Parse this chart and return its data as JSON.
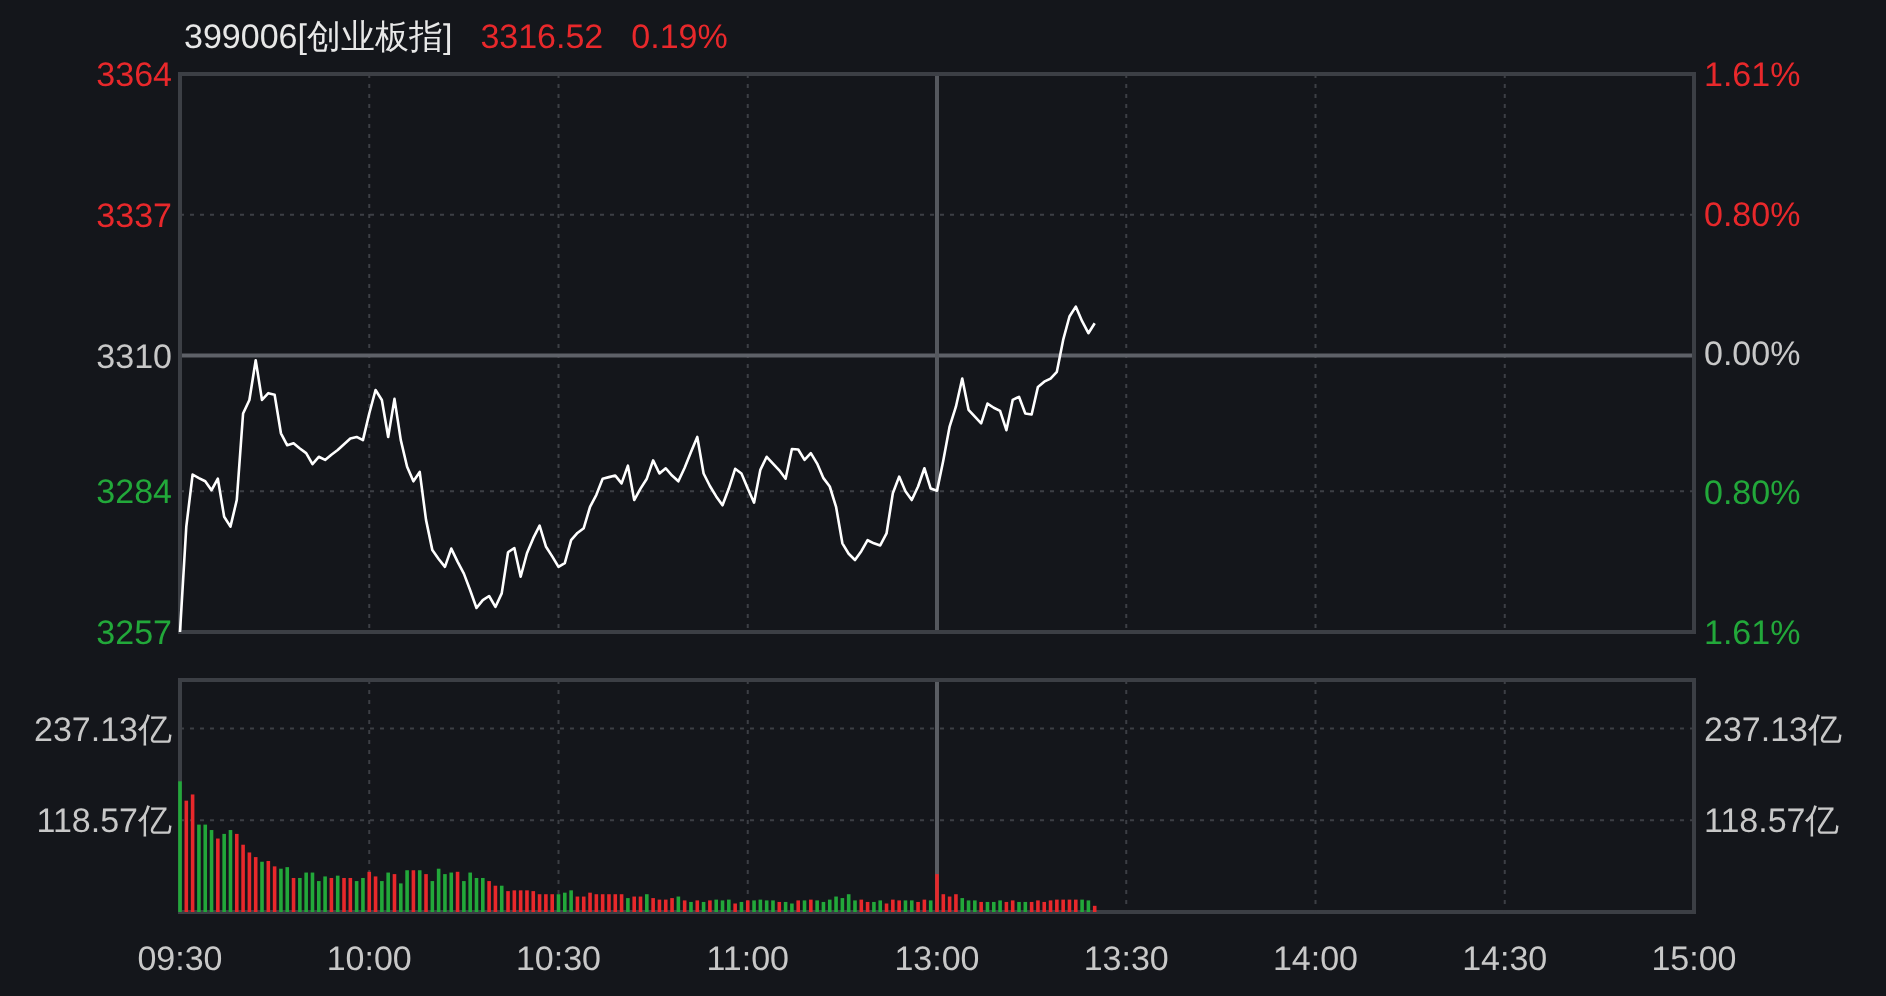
{
  "chart_data": [
    {
      "type": "line",
      "title": "399006[创业板指]",
      "annotations": [
        "3316.52",
        "0.19%"
      ],
      "categories": [
        "09:30",
        null,
        null,
        null,
        null,
        null,
        null,
        null,
        null,
        null,
        null,
        null,
        null,
        null,
        null,
        null,
        null,
        null,
        null,
        null,
        null,
        null,
        null,
        null,
        null,
        null,
        null,
        null,
        null,
        null,
        "10:00",
        null,
        null,
        null,
        null,
        null,
        null,
        null,
        null,
        null,
        null,
        null,
        null,
        null,
        null,
        null,
        null,
        null,
        null,
        null,
        null,
        null,
        null,
        null,
        null,
        null,
        null,
        null,
        null,
        null,
        "10:30",
        null,
        null,
        null,
        null,
        null,
        null,
        null,
        null,
        null,
        null,
        null,
        null,
        null,
        null,
        null,
        null,
        null,
        null,
        null,
        null,
        null,
        null,
        null,
        null,
        null,
        null,
        null,
        null,
        null,
        "11:00",
        null,
        null,
        null,
        null,
        null,
        null,
        null,
        null,
        null,
        null,
        null,
        null,
        null,
        null,
        null,
        null,
        null,
        null,
        null,
        null,
        null,
        null,
        null,
        null,
        null,
        null,
        null,
        null,
        null,
        "13:00",
        null,
        null,
        null,
        null,
        null,
        null,
        null,
        null,
        null,
        null,
        null,
        null,
        null,
        null,
        null,
        null,
        null,
        null,
        null,
        null,
        null,
        null,
        null,
        null,
        null,
        null,
        null,
        null,
        null,
        "13:30",
        null,
        null,
        null,
        null,
        null,
        null,
        null,
        null,
        null,
        null,
        null,
        null,
        null,
        null,
        null,
        null,
        null,
        null,
        null,
        null,
        null,
        null,
        null,
        null,
        null,
        null,
        null,
        null,
        null,
        "14:00",
        null,
        null,
        null,
        null,
        null,
        null,
        null,
        null,
        null,
        null,
        null,
        null,
        null,
        null,
        null,
        null,
        null,
        null,
        null,
        null,
        null,
        null,
        null,
        null,
        null,
        null,
        null,
        null,
        null,
        "14:30",
        null,
        null,
        null,
        null,
        null,
        null,
        null,
        null,
        null,
        null,
        null,
        null,
        null,
        null,
        null,
        null,
        null,
        null,
        null,
        null,
        null,
        null,
        null,
        null,
        null,
        null,
        null,
        null,
        null,
        "15:00"
      ],
      "series": [
        {
          "color": "#ffffff",
          "values": [
            3257,
            3277.2,
            3287.2,
            3286.5,
            3285.9,
            3284.2,
            3286.4,
            3279.1,
            3277.2,
            3282.3,
            3298.9,
            3301.5,
            3309.1,
            3301.5,
            3302.8,
            3302.5,
            3295.1,
            3292.8,
            3293.2,
            3292.2,
            3291.3,
            3289.2,
            3290.6,
            3290.0,
            3291.0,
            3291.9,
            3293.0,
            3294.1,
            3294.4,
            3293.8,
            3298.9,
            3303.4,
            3301.5,
            3294.4,
            3301.7,
            3293.8,
            3288.7,
            3285.9,
            3287.7,
            3278.5,
            3272.7,
            3271.0,
            3269.5,
            3273.0,
            3270.5,
            3268.2,
            3265.0,
            3261.6,
            3263.1,
            3263.9,
            3261.8,
            3264.4,
            3272.3,
            3273.1,
            3267.6,
            3272.1,
            3275.0,
            3277.4,
            3273.4,
            3271.5,
            3269.5,
            3270.2,
            3274.6,
            3276.0,
            3276.9,
            3281.0,
            3283.3,
            3286.4,
            3286.7,
            3287.0,
            3285.5,
            3288.9,
            3282.3,
            3284.5,
            3286.4,
            3289.9,
            3287.4,
            3288.4,
            3287.0,
            3285.9,
            3288.5,
            3291.5,
            3294.4,
            3287.4,
            3285.0,
            3283.0,
            3281.3,
            3284.5,
            3288.3,
            3287.4,
            3284.5,
            3281.8,
            3288.1,
            3290.6,
            3289.3,
            3288.0,
            3286.4,
            3292.1,
            3292.0,
            3290.0,
            3291.3,
            3289.3,
            3286.5,
            3284.9,
            3281.0,
            3274.0,
            3272.0,
            3270.8,
            3272.5,
            3274.6,
            3274.0,
            3273.6,
            3275.9,
            3283.6,
            3286.8,
            3284.0,
            3282.3,
            3284.9,
            3288.4,
            3284.5,
            3284.1,
            3289.9,
            3296.4,
            3300.2,
            3305.6,
            3299.6,
            3298.3,
            3297.0,
            3300.8,
            3300.0,
            3299.4,
            3295.7,
            3301.5,
            3302.1,
            3298.9,
            3298.7,
            3304.0,
            3305.0,
            3305.6,
            3306.9,
            3313.0,
            3317.5,
            3319.4,
            3316.6,
            3314.3,
            3316.2,
            null,
            null,
            null,
            null,
            null,
            null,
            null,
            null,
            null,
            null,
            null,
            null,
            null,
            null,
            null,
            null,
            null,
            null,
            null,
            null,
            null,
            null,
            null,
            null,
            null,
            null,
            null,
            null,
            null,
            null,
            null,
            null,
            null,
            null,
            null,
            null,
            null,
            null,
            null,
            null,
            null,
            null,
            null,
            null,
            null,
            null,
            null,
            null,
            null,
            null,
            null,
            null,
            null,
            null,
            null,
            null,
            null,
            null,
            null,
            null,
            null,
            null,
            null,
            null,
            null,
            null,
            null,
            null,
            null,
            null,
            null,
            null,
            null,
            null,
            null,
            null,
            null,
            null,
            null,
            null,
            null,
            null,
            null,
            null,
            null,
            null,
            null,
            null,
            null,
            null,
            null,
            null,
            null,
            null,
            null
          ]
        }
      ],
      "ylim": [
        3257,
        3364
      ],
      "yticks": [
        3257,
        3284,
        3310,
        3337,
        3364
      ],
      "y2lim": [
        -1.61,
        1.61
      ],
      "y2ticks": [
        {
          "value": -1.61,
          "label": "1.61%"
        },
        {
          "value": -0.8,
          "label": "0.80%"
        },
        {
          "value": 0,
          "label": "0.00%"
        },
        {
          "value": 0.8,
          "label": "0.80%"
        },
        {
          "value": 1.61,
          "label": "1.61%"
        }
      ],
      "ref_lines": [
        {
          "axis": "y",
          "value": 3310,
          "color": "#5e6168"
        },
        {
          "axis": "x",
          "value": "13:00",
          "color": "#55585e"
        }
      ],
      "grid": true,
      "tick_labels": "y"
    },
    {
      "type": "bar",
      "categories": [
        "09:30",
        null,
        null,
        null,
        null,
        null,
        null,
        null,
        null,
        null,
        null,
        null,
        null,
        null,
        null,
        null,
        null,
        null,
        null,
        null,
        null,
        null,
        null,
        null,
        null,
        null,
        null,
        null,
        null,
        null,
        "10:00",
        null,
        null,
        null,
        null,
        null,
        null,
        null,
        null,
        null,
        null,
        null,
        null,
        null,
        null,
        null,
        null,
        null,
        null,
        null,
        null,
        null,
        null,
        null,
        null,
        null,
        null,
        null,
        null,
        null,
        "10:30",
        null,
        null,
        null,
        null,
        null,
        null,
        null,
        null,
        null,
        null,
        null,
        null,
        null,
        null,
        null,
        null,
        null,
        null,
        null,
        null,
        null,
        null,
        null,
        null,
        null,
        null,
        null,
        null,
        null,
        "11:00",
        null,
        null,
        null,
        null,
        null,
        null,
        null,
        null,
        null,
        null,
        null,
        null,
        null,
        null,
        null,
        null,
        null,
        null,
        null,
        null,
        null,
        null,
        null,
        null,
        null,
        null,
        null,
        null,
        null,
        "13:00",
        null,
        null,
        null,
        null,
        null,
        null,
        null,
        null,
        null,
        null,
        null,
        null,
        null,
        null,
        null,
        null,
        null,
        null,
        null,
        null,
        null,
        null,
        null,
        null,
        null,
        null,
        null,
        null,
        null,
        "13:30",
        null,
        null,
        null,
        null,
        null,
        null,
        null,
        null,
        null,
        null,
        null,
        null,
        null,
        null,
        null,
        null,
        null,
        null,
        null,
        null,
        null,
        null,
        null,
        null,
        null,
        null,
        null,
        null,
        null,
        "14:00",
        null,
        null,
        null,
        null,
        null,
        null,
        null,
        null,
        null,
        null,
        null,
        null,
        null,
        null,
        null,
        null,
        null,
        null,
        null,
        null,
        null,
        null,
        null,
        null,
        null,
        null,
        null,
        null,
        null,
        "14:30",
        null,
        null,
        null,
        null,
        null,
        null,
        null,
        null,
        null,
        null,
        null,
        null,
        null,
        null,
        null,
        null,
        null,
        null,
        null,
        null,
        null,
        null,
        null,
        null,
        null,
        null,
        null,
        null,
        null,
        "15:00"
      ],
      "values": [
        169,
        144,
        152,
        113,
        113,
        106,
        95,
        101,
        106,
        101,
        87,
        77,
        71,
        65,
        66,
        59,
        56,
        58,
        44,
        44,
        51,
        51,
        40,
        46,
        44,
        47,
        44,
        44,
        40,
        44,
        52,
        46,
        40,
        51,
        49,
        37,
        54,
        54,
        54,
        49,
        40,
        56,
        49,
        51,
        52,
        40,
        51,
        44,
        44,
        40,
        34,
        34,
        27,
        28,
        28,
        28,
        27,
        23,
        23,
        23,
        23,
        25,
        28,
        20,
        20,
        25,
        23,
        23,
        23,
        23,
        23,
        18,
        20,
        20,
        23,
        18,
        16,
        16,
        18,
        20,
        15,
        13,
        15,
        13,
        15,
        16,
        15,
        16,
        11,
        13,
        15,
        15,
        16,
        15,
        15,
        13,
        13,
        11,
        15,
        15,
        16,
        15,
        13,
        16,
        20,
        18,
        23,
        15,
        16,
        13,
        13,
        15,
        11,
        16,
        15,
        15,
        15,
        13,
        16,
        15,
        49,
        23,
        20,
        23,
        18,
        15,
        15,
        13,
        13,
        13,
        15,
        13,
        15,
        13,
        13,
        13,
        15,
        13,
        15,
        16,
        16,
        16,
        16,
        16,
        15,
        8,
        null,
        null,
        null,
        null,
        null,
        null,
        null,
        null,
        null,
        null,
        null,
        null,
        null,
        null,
        null,
        null,
        null,
        null,
        null,
        null,
        null,
        null,
        null,
        null,
        null,
        null,
        null,
        null,
        null,
        null,
        null,
        null,
        null,
        null,
        null,
        null,
        null,
        null,
        null,
        null,
        null,
        null,
        null,
        null,
        null,
        null,
        null,
        null,
        null,
        null,
        null,
        null,
        null,
        null,
        null,
        null,
        null,
        null,
        null,
        null,
        null,
        null,
        null,
        null,
        null,
        null,
        null,
        null,
        null,
        null,
        null,
        null,
        null,
        null,
        null,
        null,
        null,
        null,
        null,
        null,
        null,
        null,
        null,
        null,
        null,
        null,
        null,
        null,
        null,
        null,
        null,
        null,
        null,
        null,
        null
      ],
      "colors": [
        "#22a83a",
        "#e8282b",
        "#e8282b",
        "#22a83a",
        "#22a83a",
        "#22a83a",
        "#e8282b",
        "#22a83a",
        "#22a83a",
        "#e8282b",
        "#e8282b",
        "#e8282b",
        "#e8282b",
        "#22a83a",
        "#e8282b",
        "#e8282b",
        "#22a83a",
        "#22a83a",
        "#e8282b",
        "#22a83a",
        "#22a83a",
        "#22a83a",
        "#22a83a",
        "#22a83a",
        "#e8282b",
        "#22a83a",
        "#e8282b",
        "#e8282b",
        "#22a83a",
        "#22a83a",
        "#e8282b",
        "#e8282b",
        "#22a83a",
        "#22a83a",
        "#e8282b",
        "#22a83a",
        "#22a83a",
        "#e8282b",
        "#22a83a",
        "#e8282b",
        "#22a83a",
        "#22a83a",
        "#22a83a",
        "#22a83a",
        "#e8282b",
        "#22a83a",
        "#22a83a",
        "#22a83a",
        "#22a83a",
        "#e8282b",
        "#e8282b",
        "#22a83a",
        "#e8282b",
        "#e8282b",
        "#e8282b",
        "#e8282b",
        "#e8282b",
        "#e8282b",
        "#e8282b",
        "#e8282b",
        "#22a83a",
        "#22a83a",
        "#22a83a",
        "#e8282b",
        "#e8282b",
        "#e8282b",
        "#e8282b",
        "#e8282b",
        "#e8282b",
        "#e8282b",
        "#e8282b",
        "#22a83a",
        "#e8282b",
        "#e8282b",
        "#22a83a",
        "#e8282b",
        "#e8282b",
        "#e8282b",
        "#e8282b",
        "#22a83a",
        "#e8282b",
        "#22a83a",
        "#e8282b",
        "#22a83a",
        "#e8282b",
        "#22a83a",
        "#22a83a",
        "#22a83a",
        "#e8282b",
        "#22a83a",
        "#e8282b",
        "#22a83a",
        "#22a83a",
        "#22a83a",
        "#22a83a",
        "#e8282b",
        "#22a83a",
        "#22a83a",
        "#e8282b",
        "#22a83a",
        "#e8282b",
        "#22a83a",
        "#22a83a",
        "#22a83a",
        "#22a83a",
        "#22a83a",
        "#22a83a",
        "#22a83a",
        "#e8282b",
        "#e8282b",
        "#22a83a",
        "#22a83a",
        "#e8282b",
        "#e8282b",
        "#e8282b",
        "#22a83a",
        "#22a83a",
        "#e8282b",
        "#e8282b",
        "#22a83a",
        "#e8282b",
        "#e8282b",
        "#e8282b",
        "#e8282b",
        "#22a83a",
        "#22a83a",
        "#22a83a",
        "#e8282b",
        "#22a83a",
        "#22a83a",
        "#22a83a",
        "#e8282b",
        "#e8282b",
        "#22a83a",
        "#22a83a",
        "#e8282b",
        "#e8282b",
        "#e8282b",
        "#e8282b",
        "#e8282b",
        "#e8282b",
        "#e8282b",
        "#e8282b",
        "#22a83a",
        "#22a83a",
        "#e8282b",
        null,
        null,
        null,
        null,
        null,
        null,
        null,
        null,
        null,
        null,
        null,
        null,
        null,
        null,
        null,
        null,
        null,
        null,
        null,
        null,
        null,
        null,
        null,
        null,
        null,
        null,
        null,
        null,
        null,
        null,
        null,
        null,
        null,
        null,
        null,
        null,
        null,
        null,
        null,
        null,
        null,
        null,
        null,
        null,
        null,
        null,
        null,
        null,
        null,
        null,
        null,
        null,
        null,
        null,
        null,
        null,
        null,
        null,
        null,
        null,
        null,
        null,
        null,
        null,
        null,
        null,
        null,
        null,
        null,
        null,
        null,
        null,
        null,
        null,
        null,
        null,
        null,
        null,
        null,
        null,
        null,
        null,
        null,
        null,
        null,
        null,
        null,
        null,
        null,
        null,
        null,
        null,
        null,
        null,
        null
      ],
      "ylim": [
        0,
        300
      ],
      "yticks": [
        {
          "value": 118.57,
          "label": "118.57亿"
        },
        {
          "value": 237.13,
          "label": "237.13亿"
        }
      ],
      "y2lim": [
        0,
        300
      ],
      "y2ticks": [
        {
          "value": 118.57,
          "label": "118.57亿"
        },
        {
          "value": 237.13,
          "label": "237.13亿"
        }
      ],
      "ref_lines": [
        {
          "axis": "x",
          "value": "13:00",
          "color": "#5a5d63"
        }
      ],
      "grid": true
    }
  ]
}
